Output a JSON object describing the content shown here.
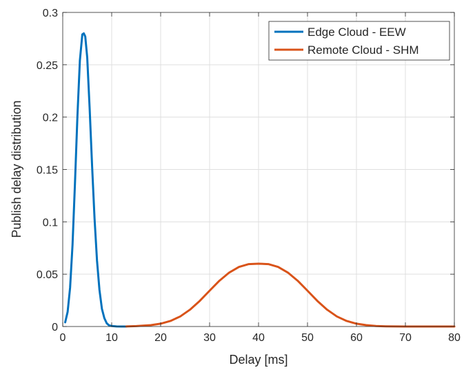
{
  "chart_data": {
    "type": "line",
    "title": "",
    "xlabel": "Delay [ms]",
    "ylabel": "Publish delay distribution",
    "xlim": [
      0,
      80
    ],
    "ylim": [
      0,
      0.3
    ],
    "x_ticks": [
      0,
      10,
      20,
      30,
      40,
      50,
      60,
      70,
      80
    ],
    "y_ticks": [
      0,
      0.05,
      0.1,
      0.15,
      0.2,
      0.25,
      0.3
    ],
    "x_tick_labels": [
      "0",
      "10",
      "20",
      "30",
      "40",
      "50",
      "60",
      "70",
      "80"
    ],
    "y_tick_labels": [
      "0",
      "0.05",
      "0.1",
      "0.15",
      "0.2",
      "0.25",
      "0.3"
    ],
    "grid": true,
    "legend_position": "top-right",
    "series": [
      {
        "name": "Edge Cloud - EEW",
        "color": "#0072BD",
        "x": [
          0.5,
          1,
          1.5,
          2,
          2.5,
          3,
          3.5,
          4,
          4.3,
          4.6,
          5,
          5.5,
          6,
          6.5,
          7,
          7.5,
          8,
          8.5,
          9,
          9.5,
          10,
          11,
          12,
          13
        ],
        "y": [
          0.004,
          0.014,
          0.037,
          0.078,
          0.137,
          0.201,
          0.254,
          0.279,
          0.28,
          0.277,
          0.257,
          0.208,
          0.153,
          0.103,
          0.063,
          0.035,
          0.017,
          0.008,
          0.003,
          0.001,
          0.0005,
          0.0001,
          0,
          0
        ]
      },
      {
        "name": "Remote Cloud - SHM",
        "color": "#D95319",
        "x": [
          13,
          15,
          18,
          20,
          22,
          24,
          26,
          28,
          30,
          32,
          34,
          36,
          38,
          40,
          42,
          44,
          46,
          48,
          50,
          52,
          54,
          56,
          58,
          60,
          62,
          64,
          66,
          68,
          70,
          75,
          80
        ],
        "y": [
          0.0001,
          0.0004,
          0.0013,
          0.0027,
          0.0053,
          0.0096,
          0.0161,
          0.0245,
          0.0342,
          0.0437,
          0.0515,
          0.0569,
          0.0596,
          0.06,
          0.0596,
          0.0569,
          0.0515,
          0.0437,
          0.0342,
          0.0245,
          0.0161,
          0.0096,
          0.0053,
          0.0027,
          0.0013,
          0.0005,
          0.0002,
          0.0001,
          0,
          0,
          0
        ]
      }
    ]
  }
}
